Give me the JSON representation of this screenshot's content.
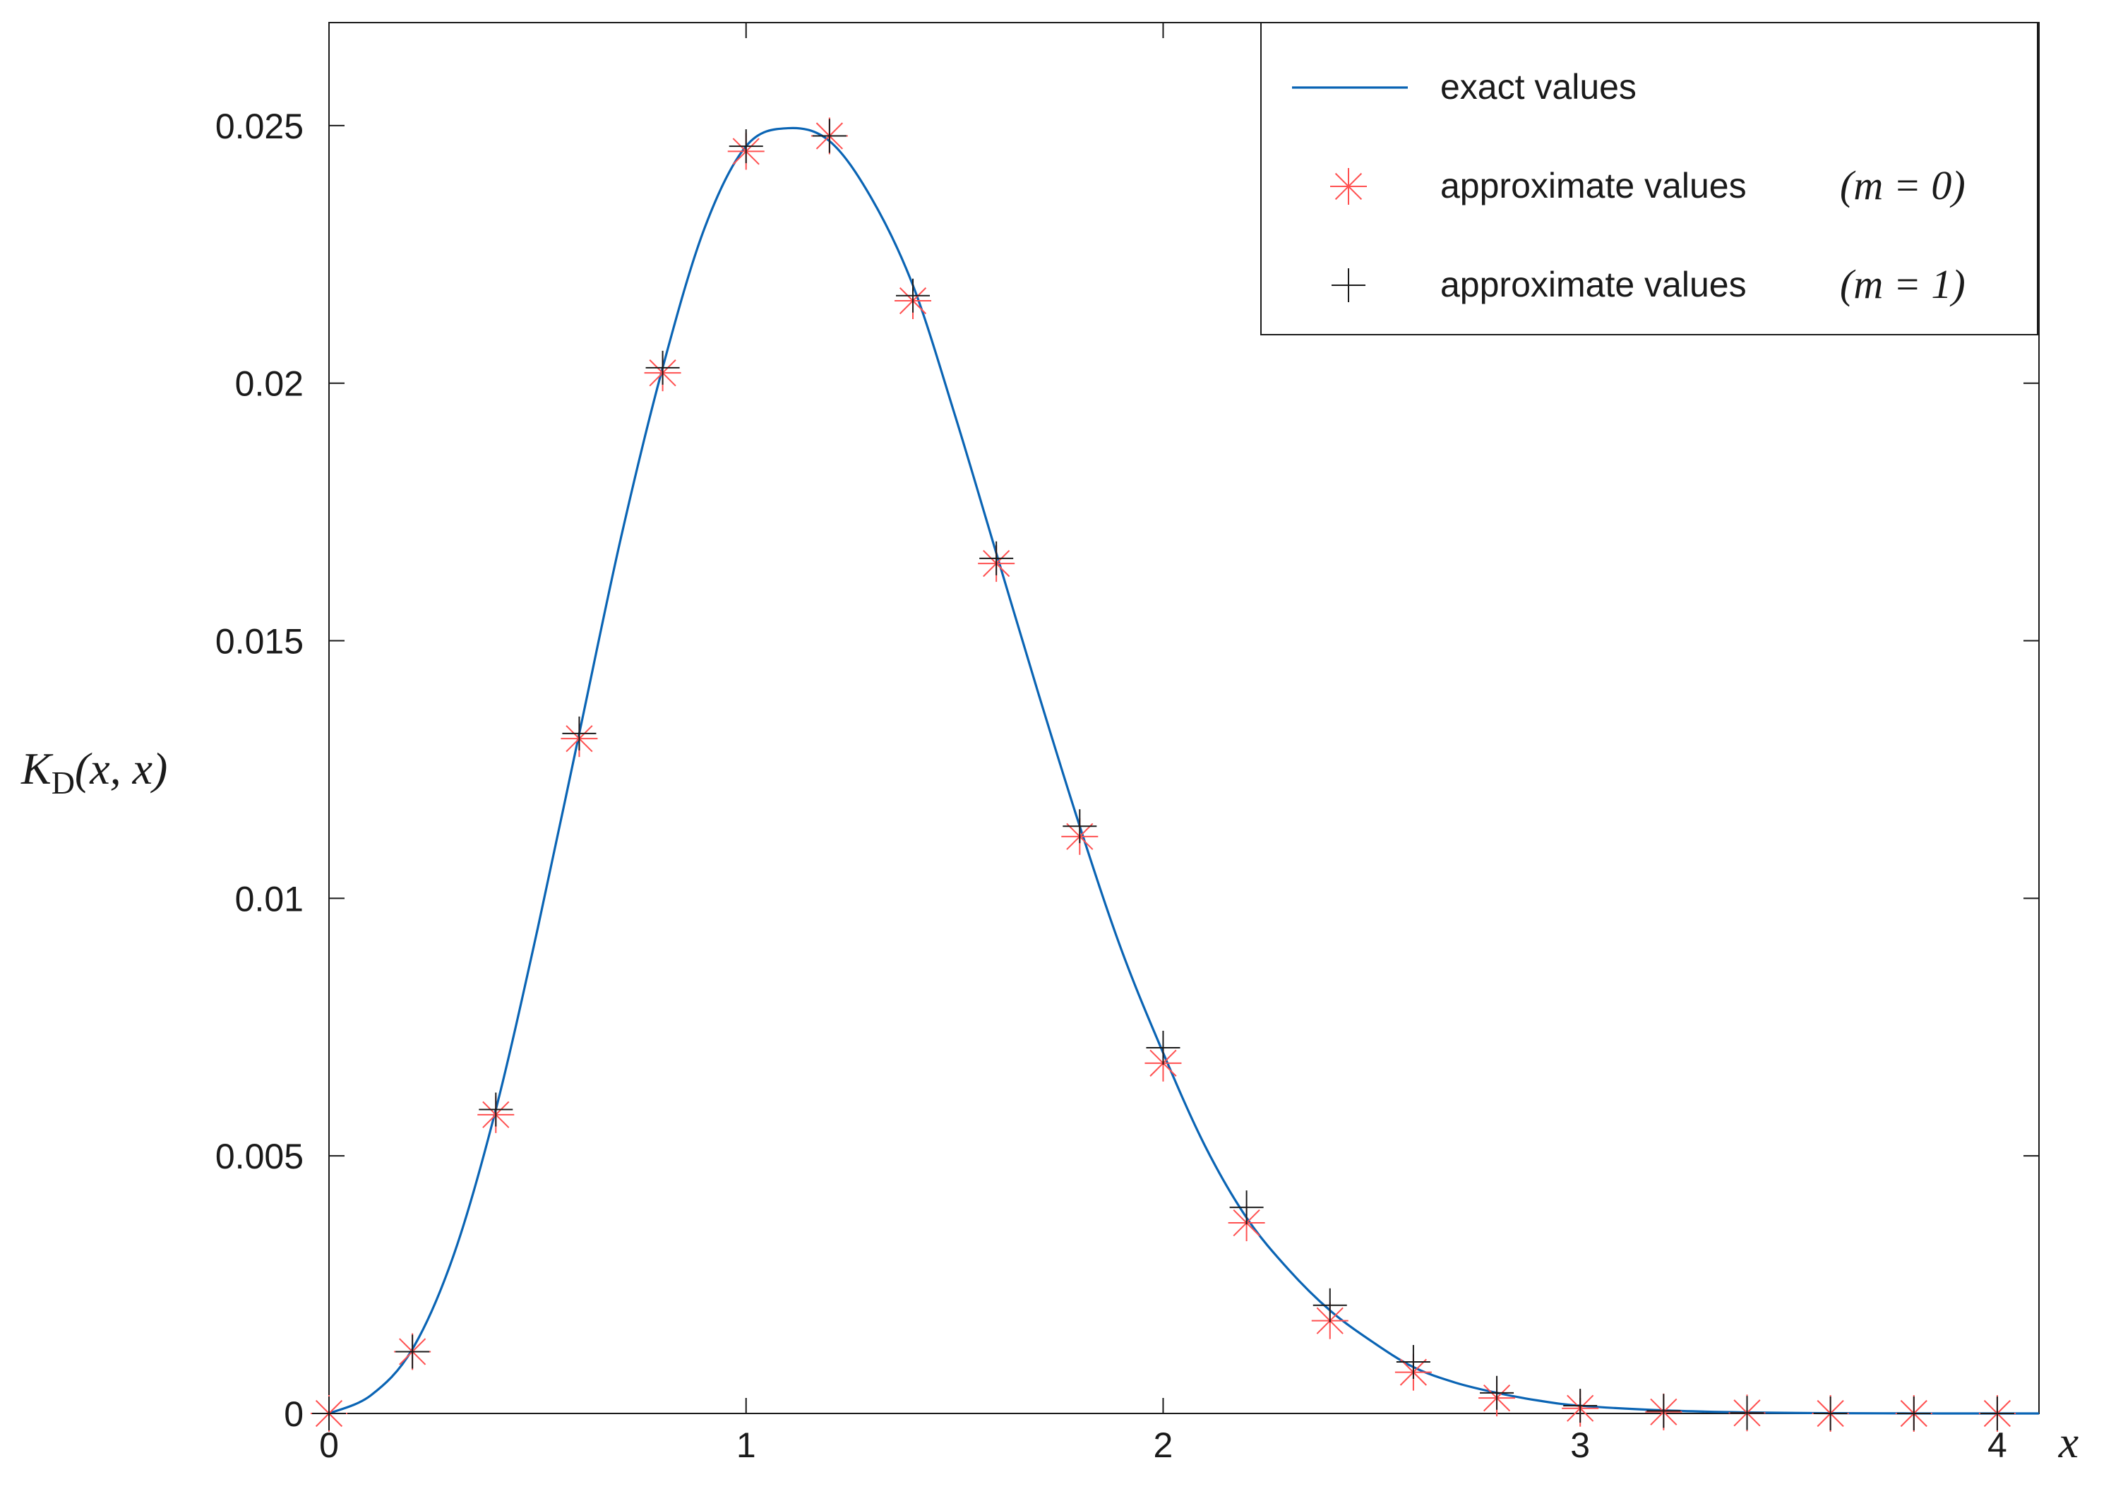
{
  "chart_data": {
    "type": "line",
    "xlabel": "x",
    "ylabel": "K_D(x, x)",
    "ylabel_parts": {
      "main": "K",
      "sub": "D",
      "args": "(x, x)"
    },
    "xlim": [
      0,
      4.1
    ],
    "ylim": [
      0,
      0.027
    ],
    "x_ticks": [
      0,
      1,
      2,
      3,
      4
    ],
    "x_tick_labels": [
      "0",
      "1",
      "2",
      "3",
      "4"
    ],
    "y_ticks": [
      0,
      0.005,
      0.01,
      0.015,
      0.02,
      0.025
    ],
    "y_tick_labels": [
      "0",
      "0.005",
      "0.01",
      "0.015",
      "0.02",
      "0.025"
    ],
    "grid": false,
    "legend_position": "top-right",
    "series": [
      {
        "name": "exact values",
        "kind": "line",
        "color": "#0a64b4",
        "x": [
          0,
          0.1,
          0.2,
          0.3,
          0.4,
          0.5,
          0.6,
          0.7,
          0.8,
          0.9,
          1.0,
          1.1,
          1.2,
          1.3,
          1.4,
          1.5,
          1.6,
          1.7,
          1.8,
          1.9,
          2.0,
          2.1,
          2.2,
          2.3,
          2.4,
          2.5,
          2.6,
          2.7,
          2.8,
          2.9,
          3.0,
          3.2,
          3.4,
          3.6,
          3.8,
          4.0,
          4.1
        ],
        "y": [
          0,
          0.00035,
          0.00125,
          0.0031,
          0.0059,
          0.0094,
          0.0132,
          0.017,
          0.0203,
          0.023,
          0.0246,
          0.02495,
          0.0247,
          0.0236,
          0.0219,
          0.0194,
          0.0167,
          0.014,
          0.0114,
          0.009,
          0.007,
          0.0052,
          0.0038,
          0.0028,
          0.002,
          0.0014,
          0.0009,
          0.0006,
          0.0004,
          0.00025,
          0.00015,
          6e-05,
          2e-05,
          5e-06,
          1e-06,
          0,
          0
        ]
      },
      {
        "name": "approximate values",
        "math": "(m = 0)",
        "kind": "markers",
        "marker": "asterisk",
        "color": "#ff5050",
        "x": [
          0,
          0.2,
          0.4,
          0.6,
          0.8,
          1.0,
          1.2,
          1.4,
          1.6,
          1.8,
          2.0,
          2.2,
          2.4,
          2.6,
          2.8,
          3.0,
          3.2,
          3.4,
          3.6,
          3.8,
          4.0
        ],
        "y": [
          0,
          0.0012,
          0.0058,
          0.0131,
          0.0202,
          0.0245,
          0.0248,
          0.0216,
          0.0165,
          0.0112,
          0.0068,
          0.0037,
          0.0018,
          0.0008,
          0.0003,
          0.0001,
          3e-05,
          1e-05,
          0,
          0,
          0
        ]
      },
      {
        "name": "approximate values",
        "math": "(m = 1)",
        "kind": "markers",
        "marker": "plus",
        "color": "#1a1a1a",
        "x": [
          0,
          0.2,
          0.4,
          0.6,
          0.8,
          1.0,
          1.2,
          1.4,
          1.6,
          1.8,
          2.0,
          2.2,
          2.4,
          2.6,
          2.8,
          3.0,
          3.2,
          3.4,
          3.6,
          3.8,
          4.0
        ],
        "y": [
          0,
          0.0012,
          0.0059,
          0.0132,
          0.0203,
          0.0246,
          0.0248,
          0.0217,
          0.0166,
          0.0114,
          0.0071,
          0.004,
          0.0021,
          0.001,
          0.0004,
          0.00015,
          5e-05,
          1e-05,
          0,
          0,
          0
        ]
      }
    ]
  }
}
